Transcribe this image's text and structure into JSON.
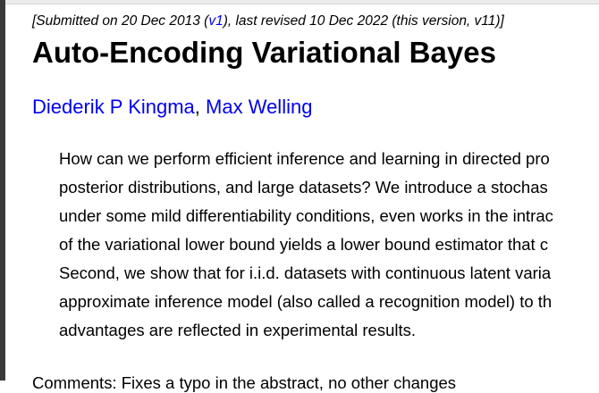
{
  "submission": {
    "prefix": "[Submitted on 20 Dec 2013 (",
    "v1_link": "v1",
    "suffix": "), last revised 10 Dec 2022 (this version, v11)]"
  },
  "title": "Auto-Encoding Variational Bayes",
  "authors": [
    {
      "name": "Diederik P Kingma"
    },
    {
      "name": "Max Welling"
    }
  ],
  "author_separator": ", ",
  "abstract_lines": [
    "How can we perform efficient inference and learning in directed pro",
    "posterior distributions, and large datasets? We introduce a stochas",
    "under some mild differentiability conditions, even works in the intrac",
    "of the variational lower bound yields a lower bound estimator that c",
    "Second, we show that for i.i.d. datasets with continuous latent varia",
    "approximate inference model (also called a recognition model) to th",
    "advantages are reflected in experimental results."
  ],
  "comments": "Comments: Fixes a typo in the abstract, no other changes"
}
